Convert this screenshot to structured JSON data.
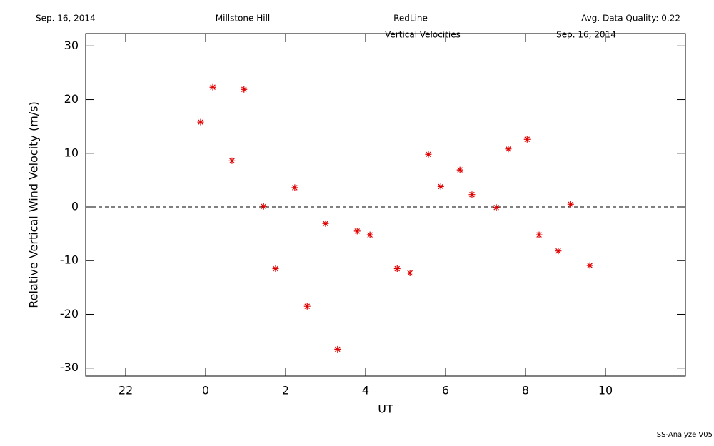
{
  "chart_data": {
    "type": "scatter",
    "header": {
      "date": "Sep. 16, 2014",
      "site": "Millstone Hill",
      "line": "RedLine",
      "quality": "Avg. Data Quality: 0.22"
    },
    "title": "Vertical Velocities",
    "subtitle": "Sep. 16, 2014",
    "x_label": "UT",
    "y_label": "Relative Vertical Wind Velocity (m/s)",
    "footer": "SS-Analyze V05",
    "color": "#e00000",
    "zero_line": true,
    "xlim": [
      -3,
      12
    ],
    "xticks": [
      {
        "value": -2,
        "label": "22"
      },
      0,
      2,
      4,
      6,
      8,
      10
    ],
    "ylim": [
      -31.5,
      32.3
    ],
    "yticks": [
      -30,
      -20,
      -10,
      0,
      10,
      20,
      30
    ],
    "x": [
      -0.125,
      0.18,
      0.66,
      0.96,
      1.45,
      1.75,
      2.23,
      2.54,
      3.0,
      3.3,
      3.79,
      4.11,
      4.79,
      5.11,
      5.57,
      5.88,
      6.36,
      6.66,
      7.27,
      7.57,
      8.04,
      8.34,
      8.82,
      9.13,
      9.61
    ],
    "values": [
      15.8,
      22.3,
      8.6,
      21.9,
      0.1,
      -11.5,
      3.6,
      -18.5,
      -3.1,
      -26.5,
      -4.5,
      -5.2,
      -11.5,
      -12.3,
      9.8,
      3.8,
      6.9,
      2.3,
      -0.1,
      10.8,
      12.6,
      -5.2,
      -8.2,
      0.5,
      -10.9
    ]
  }
}
